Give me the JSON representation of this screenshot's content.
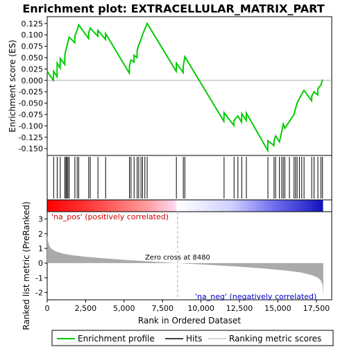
{
  "chart_data": {
    "type": "line",
    "title": "Enrichment plot: EXTRACELLULAR_MATRIX_PART",
    "xlabel": "Rank in Ordered Dataset",
    "x_range": [
      0,
      18500
    ],
    "x_ticks": [
      0,
      2500,
      5000,
      7500,
      10000,
      12500,
      15000,
      17500
    ],
    "x_tick_labels": [
      "0",
      "2,500",
      "5,000",
      "7,500",
      "10,000",
      "12,500",
      "15,000",
      "17,500"
    ],
    "enrichment": {
      "ylabel": "Enrichment score (ES)",
      "ylim": [
        -0.165,
        0.14
      ],
      "y_ticks": [
        -0.15,
        -0.125,
        -0.1,
        -0.075,
        -0.05,
        -0.025,
        0.0,
        0.025,
        0.05,
        0.075,
        0.1,
        0.125
      ],
      "y_tick_labels": [
        "-0.150",
        "-0.125",
        "-0.100",
        "-0.075",
        "-0.050",
        "-0.025",
        "0.000",
        "0.025",
        "0.050",
        "0.075",
        "0.100",
        "0.125"
      ],
      "hits": [
        420,
        650,
        850,
        1150,
        1220,
        1280,
        1350,
        1430,
        1800,
        1950,
        2050,
        2700,
        2800,
        3300,
        3800,
        5350,
        5450,
        5650,
        5850,
        5950,
        6100,
        6200,
        6350,
        6500,
        8400,
        8850,
        8950,
        11500,
        12150,
        12400,
        12650,
        12950,
        14350,
        14750,
        14850,
        15100,
        15250,
        15350,
        15450,
        15750,
        16050,
        16150,
        16250,
        16400,
        16550,
        16700,
        17200,
        17350,
        17600,
        17800,
        17900
      ],
      "es_points": [
        [
          0,
          0.02
        ],
        [
          400,
          0.0
        ],
        [
          420,
          0.02
        ],
        [
          640,
          0.008
        ],
        [
          650,
          0.038
        ],
        [
          840,
          0.027
        ],
        [
          850,
          0.048
        ],
        [
          1140,
          0.035
        ],
        [
          1150,
          0.055
        ],
        [
          1220,
          0.068
        ],
        [
          1280,
          0.075
        ],
        [
          1350,
          0.085
        ],
        [
          1430,
          0.095
        ],
        [
          1790,
          0.083
        ],
        [
          1800,
          0.098
        ],
        [
          1950,
          0.11
        ],
        [
          2050,
          0.122
        ],
        [
          2690,
          0.092
        ],
        [
          2700,
          0.105
        ],
        [
          2800,
          0.115
        ],
        [
          3290,
          0.097
        ],
        [
          3300,
          0.11
        ],
        [
          3790,
          0.09
        ],
        [
          3800,
          0.103
        ],
        [
          5340,
          0.016
        ],
        [
          5350,
          0.032
        ],
        [
          5450,
          0.045
        ],
        [
          5640,
          0.04
        ],
        [
          5650,
          0.055
        ],
        [
          5840,
          0.05
        ],
        [
          5850,
          0.065
        ],
        [
          5950,
          0.078
        ],
        [
          6100,
          0.09
        ],
        [
          6200,
          0.1
        ],
        [
          6350,
          0.113
        ],
        [
          6500,
          0.125
        ],
        [
          8390,
          0.02
        ],
        [
          8400,
          0.038
        ],
        [
          8840,
          0.017
        ],
        [
          8850,
          0.032
        ],
        [
          8950,
          0.052
        ],
        [
          11490,
          -0.09
        ],
        [
          11500,
          -0.071
        ],
        [
          12140,
          -0.099
        ],
        [
          12150,
          -0.088
        ],
        [
          12400,
          -0.078
        ],
        [
          12640,
          -0.092
        ],
        [
          12650,
          -0.073
        ],
        [
          12940,
          -0.088
        ],
        [
          12950,
          -0.072
        ],
        [
          14340,
          -0.154
        ],
        [
          14350,
          -0.133
        ],
        [
          14740,
          -0.143
        ],
        [
          14750,
          -0.133
        ],
        [
          14850,
          -0.122
        ],
        [
          15100,
          -0.135
        ],
        [
          15250,
          -0.112
        ],
        [
          15350,
          -0.096
        ],
        [
          15450,
          -0.105
        ],
        [
          15750,
          -0.09
        ],
        [
          16050,
          -0.075
        ],
        [
          16150,
          -0.062
        ],
        [
          16250,
          -0.05
        ],
        [
          16400,
          -0.04
        ],
        [
          16550,
          -0.03
        ],
        [
          16700,
          -0.022
        ],
        [
          17190,
          -0.045
        ],
        [
          17200,
          -0.035
        ],
        [
          17350,
          -0.025
        ],
        [
          17590,
          -0.032
        ],
        [
          17600,
          -0.018
        ],
        [
          17800,
          -0.01
        ],
        [
          17900,
          0.002
        ]
      ]
    },
    "metric": {
      "ylabel": "Ranked list metric (PreRanked)",
      "ylim": [
        -2.5,
        3.5
      ],
      "y_ticks": [
        -2,
        -1,
        0,
        1,
        2,
        3
      ],
      "y_tick_labels": [
        "-2",
        "-1",
        "0",
        "1",
        "2",
        "3"
      ],
      "zero_cross": 8480,
      "zero_cross_label": "Zero cross at 8480",
      "pos_label": "'na_pos' (positively correlated)",
      "neg_label": "'na_neg' (negatively correlated)",
      "curve_points": [
        [
          0,
          1.85
        ],
        [
          60,
          1.45
        ],
        [
          150,
          1.15
        ],
        [
          300,
          0.95
        ],
        [
          600,
          0.78
        ],
        [
          1000,
          0.65
        ],
        [
          1500,
          0.55
        ],
        [
          2500,
          0.43
        ],
        [
          3500,
          0.34
        ],
        [
          5000,
          0.22
        ],
        [
          6500,
          0.12
        ],
        [
          8480,
          0.0
        ],
        [
          10500,
          -0.12
        ],
        [
          12500,
          -0.24
        ],
        [
          14000,
          -0.36
        ],
        [
          15500,
          -0.5
        ],
        [
          16500,
          -0.64
        ],
        [
          17200,
          -0.82
        ],
        [
          17600,
          -1.0
        ],
        [
          17800,
          -1.2
        ],
        [
          17900,
          -1.5
        ],
        [
          17950,
          -2.2
        ]
      ]
    },
    "legend": {
      "placement": "bottom",
      "entries": [
        "Enrichment profile",
        "Hits",
        "Ranking metric scores"
      ]
    },
    "colors": {
      "enrichment": "#00cc00",
      "hits": "#000000",
      "metric_fill": "#aaaaaa",
      "zero_line": "#aaaaaa",
      "pos_label": "#cc0000",
      "neg_label": "#0000cc",
      "heat_positive": "#ff0000",
      "heat_neutral": "#ffffff",
      "heat_negative": "#0000ff"
    }
  }
}
